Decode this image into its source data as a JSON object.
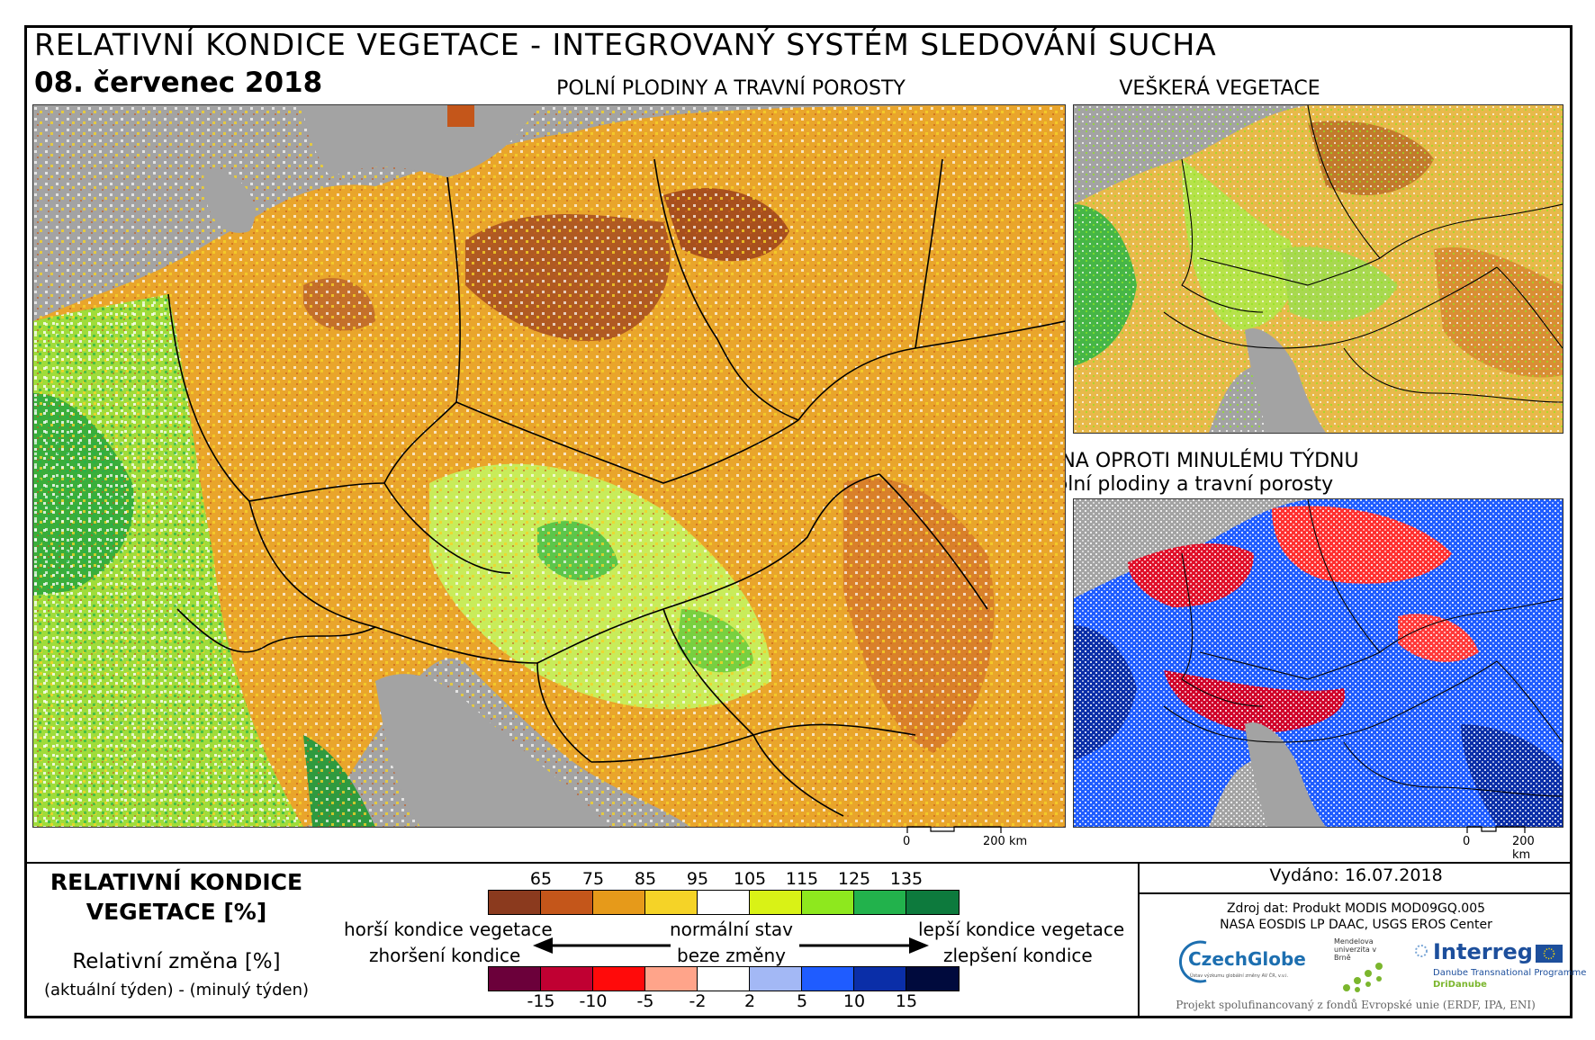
{
  "title": "RELATIVNÍ KONDICE VEGETACE - INTEGROVANÝ SYSTÉM SLEDOVÁNÍ SUCHA",
  "date": "08. červenec 2018",
  "maps": {
    "main": {
      "label": "POLNÍ PLODINY A TRAVNÍ POROSTY",
      "scale_zero": "0",
      "scale_label": "200 km"
    },
    "all_vegetation": {
      "label": "VEŠKERÁ VEGETACE"
    },
    "change": {
      "label_line1": "ZMĚNA OPROTI MINULÉMU TÝDNU",
      "label_line2": "polní plodiny a travní porosty",
      "scale_zero": "0",
      "scale_label": "200 km"
    }
  },
  "legend": {
    "title_line1": "RELATIVNÍ KONDICE",
    "title_line2": "VEGETACE [%]",
    "change_title": "Relativní změna [%]",
    "change_subtitle": "(aktuální týden) - (minulý týden)",
    "condition_ticks": [
      "65",
      "75",
      "85",
      "95",
      "105",
      "115",
      "125",
      "135"
    ],
    "condition_colors": [
      "#8b3a1e",
      "#c4561a",
      "#e69a1a",
      "#f5d327",
      "#ffffff",
      "#d9f216",
      "#8ee81e",
      "#22b24c",
      "#0d7a3d"
    ],
    "change_ticks": [
      "-15",
      "-10",
      "-5",
      "-2",
      "2",
      "5",
      "10",
      "15"
    ],
    "change_colors": [
      "#6b003a",
      "#c00032",
      "#ff0a0a",
      "#ffa48a",
      "#ffffff",
      "#a3b8f5",
      "#1f5cff",
      "#0a2ea8",
      "#000a3d"
    ],
    "worse_condition": "horší kondice vegetace",
    "worse_change": "zhoršení kondice",
    "normal": "normální stav",
    "no_change": "beze změny",
    "better_condition": "lepší kondice vegetace",
    "better_change": "zlepšení kondice"
  },
  "info": {
    "issued": "Vydáno: 16.07.2018",
    "source_line1": "Zdroj dat: Produkt MODIS MOD09GQ.005",
    "source_line2": "NASA EOSDIS LP DAAC, USGS EROS Center",
    "logo_czechglobe": "CzechGlobe",
    "logo_czechglobe_sub": "Ústav výzkumu globální změny AV ČR, v.v.i.",
    "logo_mendel": "Mendelova univerzita v Brně",
    "logo_interreg": "Interreg",
    "logo_interreg_sub1": "Danube Transnational Programme",
    "logo_interreg_sub2": "DriDanube",
    "project": "Projekt spolufinancovaný z fondů Evropské unie (ERDF, IPA, ENI)"
  }
}
